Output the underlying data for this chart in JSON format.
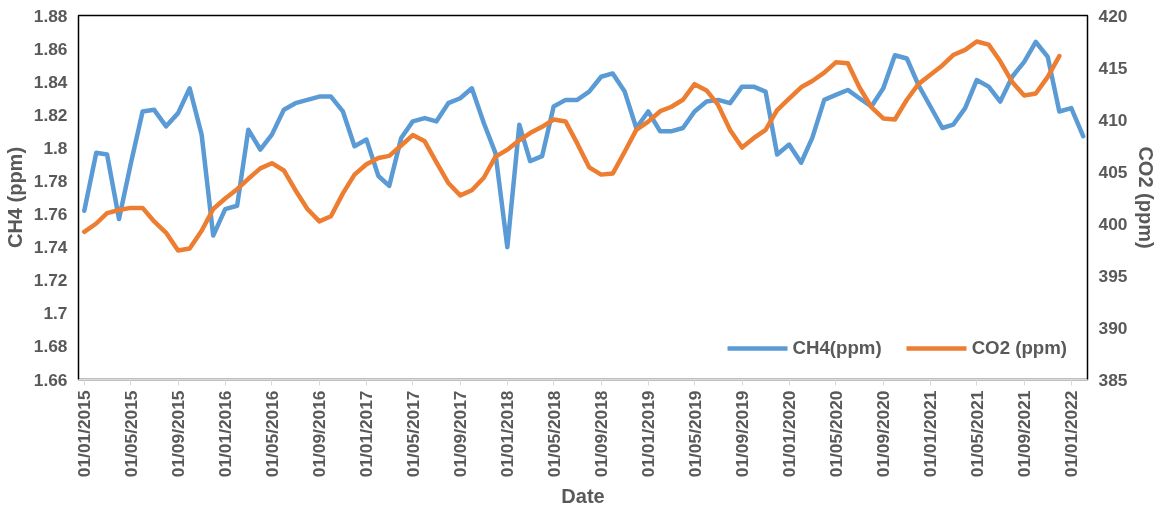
{
  "chart_data": {
    "type": "line",
    "xlabel": "Date",
    "ylabel": "CH4 (ppm)",
    "y2label": "CO2 (ppm)",
    "x": [
      "2015-01",
      "2015-02",
      "2015-03",
      "2015-04",
      "2015-05",
      "2015-06",
      "2015-07",
      "2015-08",
      "2015-09",
      "2015-10",
      "2015-11",
      "2015-12",
      "2016-01",
      "2016-02",
      "2016-03",
      "2016-04",
      "2016-05",
      "2016-06",
      "2016-07",
      "2016-08",
      "2016-09",
      "2016-10",
      "2016-11",
      "2016-12",
      "2017-01",
      "2017-02",
      "2017-03",
      "2017-04",
      "2017-05",
      "2017-06",
      "2017-07",
      "2017-08",
      "2017-09",
      "2017-10",
      "2017-11",
      "2017-12",
      "2018-01",
      "2018-02",
      "2018-03",
      "2018-04",
      "2018-05",
      "2018-06",
      "2018-07",
      "2018-08",
      "2018-09",
      "2018-10",
      "2018-11",
      "2018-12",
      "2019-01",
      "2019-02",
      "2019-03",
      "2019-04",
      "2019-05",
      "2019-06",
      "2019-07",
      "2019-08",
      "2019-09",
      "2019-10",
      "2019-11",
      "2019-12",
      "2020-01",
      "2020-02",
      "2020-03",
      "2020-04",
      "2020-05",
      "2020-06",
      "2020-07",
      "2020-08",
      "2020-09",
      "2020-10",
      "2020-11",
      "2020-12",
      "2021-01",
      "2021-02",
      "2021-03",
      "2021-04",
      "2021-05",
      "2021-06",
      "2021-07",
      "2021-08",
      "2021-09",
      "2021-10",
      "2021-11",
      "2021-12",
      "2022-01",
      "2022-02"
    ],
    "series": [
      {
        "name": "CH4(ppm)",
        "color": "#5b9bd5",
        "values": [
          1.762,
          1.797,
          1.796,
          1.757,
          1.79,
          1.822,
          1.823,
          1.813,
          1.821,
          1.836,
          1.808,
          1.747,
          1.763,
          1.765,
          1.811,
          1.799,
          1.808,
          1.823,
          1.827,
          1.829,
          1.831,
          1.831,
          1.822,
          1.801,
          1.805,
          1.783,
          1.777,
          1.806,
          1.816,
          1.818,
          1.816,
          1.827,
          1.83,
          1.836,
          1.815,
          1.797,
          1.74,
          1.814,
          1.792,
          1.795,
          1.825,
          1.829,
          1.829,
          1.834,
          1.843,
          1.845,
          1.834,
          1.812,
          1.822,
          1.81,
          1.81,
          1.812,
          1.822,
          1.828,
          1.829,
          1.827,
          1.837,
          1.837,
          1.834,
          1.796,
          1.802,
          1.791,
          1.806,
          1.829,
          1.832,
          1.835,
          1.83,
          1.825,
          1.836,
          1.856,
          1.854,
          1.838,
          1.825,
          1.812,
          1.814,
          1.824,
          1.841,
          1.837,
          1.828,
          1.843,
          1.852,
          1.864,
          1.855,
          1.822,
          1.824,
          1.807
        ]
      },
      {
        "name": "CO2 (ppm)",
        "color": "#ed7d31",
        "axis": "y2",
        "values": [
          399.2,
          400.0,
          401.0,
          401.3,
          401.5,
          401.5,
          400.2,
          399.1,
          397.4,
          397.6,
          399.3,
          401.4,
          402.4,
          403.3,
          404.3,
          405.3,
          405.8,
          405.1,
          403.2,
          401.4,
          400.2,
          400.7,
          402.9,
          404.7,
          405.7,
          406.3,
          406.5,
          407.5,
          408.5,
          407.9,
          405.9,
          403.9,
          402.7,
          403.2,
          404.4,
          406.4,
          407.1,
          408.0,
          408.7,
          409.3,
          410.0,
          409.8,
          407.7,
          405.4,
          404.7,
          404.8,
          406.9,
          409.0,
          409.8,
          410.8,
          411.2,
          411.9,
          413.4,
          412.8,
          411.4,
          409.0,
          407.3,
          408.2,
          409.0,
          410.9,
          412.0,
          413.1,
          413.7,
          414.5,
          415.5,
          415.4,
          413.1,
          411.2,
          410.1,
          410.0,
          411.9,
          413.4,
          414.3,
          415.2,
          416.2,
          416.7,
          417.5,
          417.2,
          415.6,
          413.6,
          412.3,
          412.5,
          414.1,
          416.1,
          null,
          null
        ]
      }
    ],
    "xlim": [
      "2014-12-17",
      "2022-02-12"
    ],
    "xticks": [
      {
        "value": "2015-01-01",
        "label": "01/01/2015"
      },
      {
        "value": "2015-05-01",
        "label": "01/05/2015"
      },
      {
        "value": "2015-09-01",
        "label": "01/09/2015"
      },
      {
        "value": "2016-01-01",
        "label": "01/01/2016"
      },
      {
        "value": "2016-05-01",
        "label": "01/05/2016"
      },
      {
        "value": "2016-09-01",
        "label": "01/09/2016"
      },
      {
        "value": "2017-01-01",
        "label": "01/01/2017"
      },
      {
        "value": "2017-05-01",
        "label": "01/05/2017"
      },
      {
        "value": "2017-09-01",
        "label": "01/09/2017"
      },
      {
        "value": "2018-01-01",
        "label": "01/01/2018"
      },
      {
        "value": "2018-05-01",
        "label": "01/05/2018"
      },
      {
        "value": "2018-09-01",
        "label": "01/09/2018"
      },
      {
        "value": "2019-01-01",
        "label": "01/01/2019"
      },
      {
        "value": "2019-05-01",
        "label": "01/05/2019"
      },
      {
        "value": "2019-09-01",
        "label": "01/09/2019"
      },
      {
        "value": "2020-01-01",
        "label": "01/01/2020"
      },
      {
        "value": "2020-05-01",
        "label": "01/05/2020"
      },
      {
        "value": "2020-09-01",
        "label": "01/09/2020"
      },
      {
        "value": "2021-01-01",
        "label": "01/01/2021"
      },
      {
        "value": "2021-05-01",
        "label": "01/05/2021"
      },
      {
        "value": "2021-09-01",
        "label": "01/09/2021"
      },
      {
        "value": "2022-01-01",
        "label": "01/01/2022"
      }
    ],
    "ylim": [
      1.66,
      1.88
    ],
    "yticks": [
      {
        "value": 1.66,
        "label": "1.66"
      },
      {
        "value": 1.68,
        "label": "1.68"
      },
      {
        "value": 1.7,
        "label": "1.7"
      },
      {
        "value": 1.72,
        "label": "1.72"
      },
      {
        "value": 1.74,
        "label": "1.74"
      },
      {
        "value": 1.76,
        "label": "1.76"
      },
      {
        "value": 1.78,
        "label": "1.78"
      },
      {
        "value": 1.8,
        "label": "1.8"
      },
      {
        "value": 1.82,
        "label": "1.82"
      },
      {
        "value": 1.84,
        "label": "1.84"
      },
      {
        "value": 1.86,
        "label": "1.86"
      },
      {
        "value": 1.88,
        "label": "1.88"
      }
    ],
    "y2lim": [
      385,
      420
    ],
    "y2ticks": [
      385,
      390,
      395,
      400,
      405,
      410,
      415,
      420
    ],
    "legend": "bottom right",
    "grid": false,
    "marker": "none",
    "line_style": "solid"
  }
}
